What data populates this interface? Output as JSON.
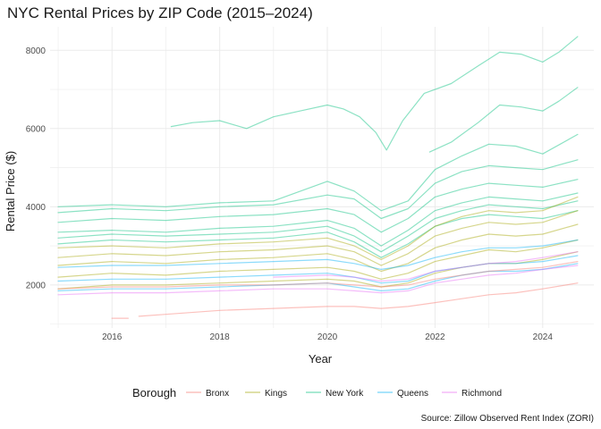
{
  "chart_data": {
    "type": "line",
    "title": "NYC Rental Prices by ZIP Code (2015–2024)",
    "xlabel": "Year",
    "ylabel": "Rental Price ($)",
    "caption": "Source: Zillow Observed Rent Index (ZORI)",
    "xlim": [
      2014.85,
      2024.95
    ],
    "ylim": [
      900,
      8600
    ],
    "x_ticks": [
      2016,
      2018,
      2020,
      2022,
      2024
    ],
    "y_ticks": [
      2000,
      4000,
      6000,
      8000
    ],
    "x_tick_labels": [
      "2016",
      "2018",
      "2020",
      "2022",
      "2024"
    ],
    "y_tick_labels": [
      "2000",
      "4000",
      "6000",
      "8000"
    ],
    "grid": true,
    "legend": {
      "title": "Borough",
      "position": "bottom",
      "entries": [
        {
          "name": "Bronx",
          "color": "#F8766D"
        },
        {
          "name": "Kings",
          "color": "#A3A500"
        },
        {
          "name": "New York",
          "color": "#00BF7D"
        },
        {
          "name": "Queens",
          "color": "#00B0F6"
        },
        {
          "name": "Richmond",
          "color": "#E76BF3"
        }
      ]
    },
    "series": [
      {
        "group": "New York",
        "start": 2017.1,
        "end": 2024.65,
        "x": [
          2017.1,
          2017.5,
          2018,
          2018.5,
          2019,
          2019.5,
          2020,
          2020.3,
          2020.6,
          2020.9,
          2021.1,
          2021.4,
          2021.8,
          2022.3,
          2022.8,
          2023.2,
          2023.6,
          2024,
          2024.3,
          2024.65
        ],
        "y": [
          6050,
          6150,
          6200,
          6000,
          6300,
          6450,
          6600,
          6500,
          6300,
          5900,
          5450,
          6200,
          6900,
          7150,
          7600,
          7950,
          7900,
          7700,
          7950,
          8350
        ]
      },
      {
        "group": "New York",
        "start": 2021.9,
        "end": 2024.65,
        "x": [
          2021.9,
          2022.3,
          2022.8,
          2023.2,
          2023.6,
          2024,
          2024.3,
          2024.65
        ],
        "y": [
          5400,
          5650,
          6150,
          6600,
          6550,
          6450,
          6700,
          7050
        ]
      },
      {
        "group": "New York",
        "start": 2015.0,
        "end": 2024.65,
        "x": [
          2015.0,
          2016,
          2017,
          2018,
          2019,
          2020,
          2020.5,
          2021,
          2021.5,
          2022,
          2022.5,
          2023,
          2023.5,
          2024,
          2024.65
        ],
        "y": [
          4000,
          4050,
          4000,
          4100,
          4150,
          4650,
          4400,
          3900,
          4150,
          4950,
          5300,
          5600,
          5550,
          5350,
          5850
        ]
      },
      {
        "group": "New York",
        "start": 2015.0,
        "end": 2024.65,
        "x": [
          2015.0,
          2016,
          2017,
          2018,
          2019,
          2020,
          2020.5,
          2021,
          2021.5,
          2022,
          2022.5,
          2023,
          2023.5,
          2024,
          2024.65
        ],
        "y": [
          3850,
          3950,
          3900,
          4000,
          4050,
          4300,
          4200,
          3700,
          3950,
          4600,
          4900,
          5050,
          5000,
          4950,
          5200
        ]
      },
      {
        "group": "New York",
        "start": 2015.0,
        "end": 2024.65,
        "x": [
          2015.0,
          2016,
          2017,
          2018,
          2019,
          2020,
          2020.5,
          2021,
          2021.5,
          2022,
          2022.5,
          2023,
          2023.5,
          2024,
          2024.65
        ],
        "y": [
          3600,
          3700,
          3650,
          3750,
          3800,
          3950,
          3800,
          3350,
          3700,
          4250,
          4450,
          4600,
          4550,
          4500,
          4700
        ]
      },
      {
        "group": "New York",
        "start": 2015.0,
        "end": 2024.65,
        "x": [
          2015.0,
          2016,
          2017,
          2018,
          2019,
          2020,
          2020.5,
          2021,
          2021.5,
          2022,
          2022.5,
          2023,
          2023.5,
          2024,
          2024.65
        ],
        "y": [
          3350,
          3400,
          3350,
          3450,
          3500,
          3650,
          3450,
          3000,
          3400,
          3900,
          4100,
          4250,
          4200,
          4150,
          4350
        ]
      },
      {
        "group": "New York",
        "start": 2015.0,
        "end": 2024.65,
        "x": [
          2015.0,
          2016,
          2017,
          2018,
          2019,
          2020,
          2020.5,
          2021,
          2021.5,
          2022,
          2022.5,
          2023,
          2023.5,
          2024,
          2024.65
        ],
        "y": [
          3200,
          3300,
          3250,
          3300,
          3350,
          3500,
          3250,
          2850,
          3250,
          3700,
          3900,
          4050,
          4000,
          3950,
          4150
        ]
      },
      {
        "group": "New York",
        "start": 2015.0,
        "end": 2024.65,
        "x": [
          2015.0,
          2016,
          2017,
          2018,
          2019,
          2020,
          2020.5,
          2021,
          2021.5,
          2022,
          2022.5,
          2023,
          2023.5,
          2024,
          2024.65
        ],
        "y": [
          3050,
          3150,
          3100,
          3150,
          3200,
          3350,
          3100,
          2700,
          3050,
          3500,
          3700,
          3800,
          3750,
          3700,
          3900
        ]
      },
      {
        "group": "Kings",
        "start": 2015.0,
        "end": 2024.65,
        "x": [
          2015.0,
          2016,
          2017,
          2018,
          2019,
          2020,
          2020.5,
          2021,
          2021.5,
          2022,
          2022.5,
          2023,
          2023.5,
          2024,
          2024.65
        ],
        "y": [
          2950,
          3000,
          2950,
          3050,
          3100,
          3200,
          3000,
          2650,
          3000,
          3500,
          3750,
          3900,
          3850,
          3900,
          4250
        ]
      },
      {
        "group": "Kings",
        "start": 2015.0,
        "end": 2024.65,
        "x": [
          2015.0,
          2016,
          2017,
          2018,
          2019,
          2020,
          2020.5,
          2021,
          2021.5,
          2022,
          2022.5,
          2023,
          2023.5,
          2024,
          2024.65
        ],
        "y": [
          2700,
          2800,
          2750,
          2850,
          2900,
          3000,
          2850,
          2500,
          2800,
          3250,
          3450,
          3600,
          3550,
          3600,
          3900
        ]
      },
      {
        "group": "Kings",
        "start": 2015.0,
        "end": 2024.65,
        "x": [
          2015.0,
          2016,
          2017,
          2018,
          2019,
          2020,
          2020.5,
          2021,
          2021.5,
          2022,
          2022.5,
          2023,
          2023.5,
          2024,
          2024.65
        ],
        "y": [
          2500,
          2600,
          2550,
          2650,
          2700,
          2800,
          2650,
          2350,
          2550,
          2950,
          3150,
          3300,
          3250,
          3300,
          3550
        ]
      },
      {
        "group": "Kings",
        "start": 2015.0,
        "end": 2024.65,
        "x": [
          2015.0,
          2016,
          2017,
          2018,
          2019,
          2020,
          2020.5,
          2021,
          2021.5,
          2022,
          2022.5,
          2023,
          2023.5,
          2024,
          2024.65
        ],
        "y": [
          2200,
          2300,
          2250,
          2350,
          2400,
          2450,
          2350,
          2150,
          2300,
          2600,
          2750,
          2900,
          2850,
          2950,
          3150
        ]
      },
      {
        "group": "Kings",
        "start": 2015.0,
        "end": 2024.65,
        "x": [
          2015.0,
          2016,
          2017,
          2018,
          2019,
          2020,
          2020.5,
          2021,
          2021.5,
          2022,
          2022.5,
          2023,
          2023.5,
          2024,
          2024.65
        ],
        "y": [
          1900,
          2000,
          2000,
          2050,
          2100,
          2150,
          2100,
          1950,
          2050,
          2300,
          2450,
          2550,
          2550,
          2650,
          2850
        ]
      },
      {
        "group": "Queens",
        "start": 2015.0,
        "end": 2024.65,
        "x": [
          2015.0,
          2016,
          2017,
          2018,
          2019,
          2020,
          2020.5,
          2021,
          2021.5,
          2022,
          2022.5,
          2023,
          2023.5,
          2024,
          2024.65
        ],
        "y": [
          2450,
          2500,
          2500,
          2550,
          2600,
          2650,
          2550,
          2400,
          2500,
          2700,
          2850,
          2950,
          2950,
          3000,
          3150
        ]
      },
      {
        "group": "Queens",
        "start": 2015.0,
        "end": 2024.65,
        "x": [
          2015.0,
          2016,
          2017,
          2018,
          2019,
          2020,
          2020.5,
          2021,
          2021.5,
          2022,
          2022.5,
          2023,
          2023.5,
          2024,
          2024.65
        ],
        "y": [
          2100,
          2150,
          2150,
          2200,
          2250,
          2300,
          2200,
          2050,
          2100,
          2350,
          2450,
          2550,
          2550,
          2600,
          2750
        ]
      },
      {
        "group": "Queens",
        "start": 2015.0,
        "end": 2024.65,
        "x": [
          2015.0,
          2016,
          2017,
          2018,
          2019,
          2020,
          2020.5,
          2021,
          2021.5,
          2022,
          2022.5,
          2023,
          2023.5,
          2024,
          2024.65
        ],
        "y": [
          1850,
          1900,
          1900,
          1950,
          2000,
          2050,
          1950,
          1850,
          1900,
          2100,
          2250,
          2350,
          2350,
          2400,
          2550
        ]
      },
      {
        "group": "Bronx",
        "start": 2015.0,
        "end": 2024.65,
        "x": [
          2015.0,
          2016,
          2017,
          2018,
          2019,
          2020,
          2020.5,
          2021,
          2021.5,
          2022,
          2022.5,
          2023,
          2023.5,
          2024,
          2024.65
        ],
        "y": [
          1900,
          1950,
          1950,
          2000,
          2000,
          2050,
          2000,
          1950,
          2000,
          2150,
          2250,
          2350,
          2400,
          2450,
          2600
        ]
      },
      {
        "group": "Bronx",
        "start": 2016.5,
        "end": 2024.65,
        "x": [
          2016.5,
          2017,
          2018,
          2019,
          2020,
          2020.5,
          2021,
          2021.5,
          2022,
          2022.5,
          2023,
          2023.5,
          2024,
          2024.65
        ],
        "y": [
          1200,
          1250,
          1350,
          1400,
          1450,
          1450,
          1400,
          1450,
          1550,
          1650,
          1750,
          1800,
          1900,
          2050
        ]
      },
      {
        "group": "Bronx",
        "start": 2016.0,
        "end": 2016.3,
        "x": [
          2016.0,
          2016.3
        ],
        "y": [
          1150,
          1150
        ]
      },
      {
        "group": "Richmond",
        "start": 2015.0,
        "end": 2024.65,
        "x": [
          2015.0,
          2016,
          2017,
          2018,
          2019,
          2020,
          2020.5,
          2021,
          2021.5,
          2022,
          2022.5,
          2023,
          2023.5,
          2024,
          2024.65
        ],
        "y": [
          1750,
          1800,
          1800,
          1850,
          1900,
          1900,
          1850,
          1800,
          1850,
          2050,
          2150,
          2250,
          2300,
          2400,
          2500
        ]
      },
      {
        "group": "Richmond",
        "start": 2019.0,
        "end": 2024.65,
        "x": [
          2019.0,
          2020,
          2020.5,
          2021,
          2021.5,
          2022,
          2022.5,
          2023,
          2023.5,
          2024,
          2024.65
        ],
        "y": [
          2200,
          2250,
          2200,
          2100,
          2150,
          2350,
          2450,
          2550,
          2600,
          2700,
          2850
        ]
      }
    ]
  }
}
